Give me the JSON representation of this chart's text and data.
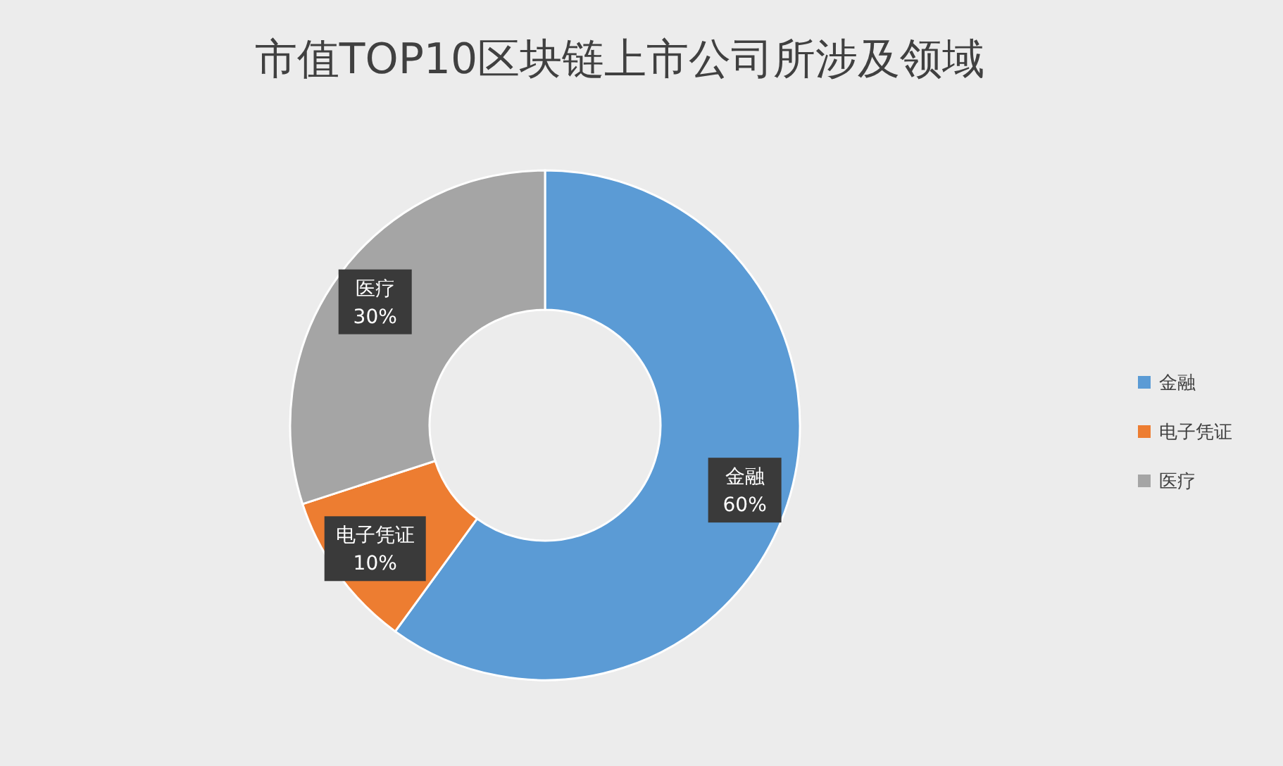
{
  "chart_data": {
    "type": "donut",
    "title": "市值TOP10区块链上市公司所涉及领域",
    "categories": [
      "金融",
      "电子凭证",
      "医疗"
    ],
    "values": [
      60,
      10,
      30
    ],
    "colors": [
      "#5b9bd5",
      "#ed7d31",
      "#a5a5a5"
    ],
    "value_labels": [
      "60%",
      "10%",
      "30%"
    ],
    "legend": "right"
  }
}
